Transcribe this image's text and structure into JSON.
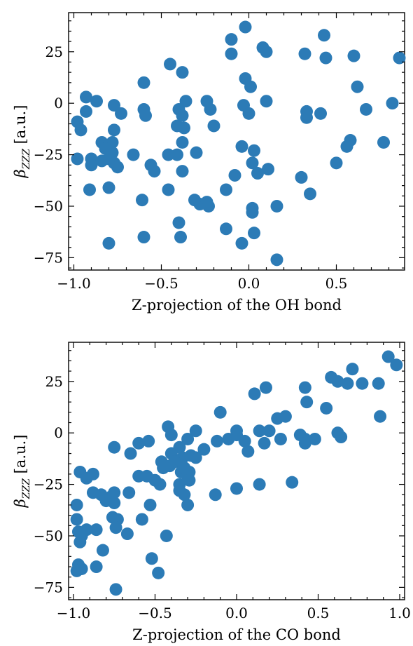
{
  "chart_data": [
    {
      "type": "scatter",
      "xlabel": "Z-projection of the OH bond",
      "ylabel_main": "β",
      "ylabel_sub": "ZZZ",
      "ylabel_unit": " [a.u.]",
      "xlim": [
        -1.03,
        0.89
      ],
      "ylim": [
        -81,
        44
      ],
      "xticks": [
        -1.0,
        -0.5,
        0.0,
        0.5
      ],
      "xtick_labels": [
        "−1.0",
        "−0.5",
        "0.0",
        "0.5"
      ],
      "yticks": [
        25,
        0,
        -25,
        -50,
        -75
      ],
      "ytick_labels": [
        "25",
        "0",
        "−25",
        "−50",
        "−75"
      ],
      "color": "#2c7bb6",
      "points": [
        [
          -0.02,
          37
        ],
        [
          -0.1,
          31
        ],
        [
          -0.1,
          24
        ],
        [
          -0.45,
          19
        ],
        [
          -0.38,
          15
        ],
        [
          -0.02,
          12
        ],
        [
          0.08,
          27
        ],
        [
          0.1,
          25
        ],
        [
          0.32,
          24
        ],
        [
          0.43,
          33
        ],
        [
          0.44,
          22
        ],
        [
          0.6,
          23
        ],
        [
          0.86,
          22
        ],
        [
          -0.6,
          10
        ],
        [
          0.01,
          8
        ],
        [
          0.62,
          8
        ],
        [
          -0.93,
          3
        ],
        [
          -0.87,
          1
        ],
        [
          -0.36,
          1
        ],
        [
          -0.24,
          1
        ],
        [
          0.1,
          1
        ],
        [
          0.82,
          0
        ],
        [
          -0.77,
          -1
        ],
        [
          -0.6,
          -3
        ],
        [
          -0.4,
          -3
        ],
        [
          -0.03,
          -1
        ],
        [
          0.33,
          -4
        ],
        [
          0.41,
          -5
        ],
        [
          0.67,
          -3
        ],
        [
          -0.93,
          -4
        ],
        [
          -0.73,
          -5
        ],
        [
          -0.59,
          -6
        ],
        [
          -0.38,
          -6
        ],
        [
          -0.22,
          -3
        ],
        [
          0.0,
          -5
        ],
        [
          0.33,
          -7
        ],
        [
          -0.98,
          -9
        ],
        [
          -0.41,
          -11
        ],
        [
          -0.2,
          -11
        ],
        [
          -0.96,
          -13
        ],
        [
          -0.37,
          -12
        ],
        [
          -0.77,
          -13
        ],
        [
          -0.38,
          -19
        ],
        [
          -0.84,
          -19
        ],
        [
          -0.78,
          -19
        ],
        [
          0.58,
          -18
        ],
        [
          0.77,
          -19
        ],
        [
          -0.82,
          -22
        ],
        [
          -0.04,
          -21
        ],
        [
          -0.78,
          -24
        ],
        [
          -0.46,
          -25
        ],
        [
          -0.3,
          -24
        ],
        [
          0.03,
          -23
        ],
        [
          0.56,
          -21
        ],
        [
          -0.98,
          -27
        ],
        [
          -0.9,
          -27
        ],
        [
          -0.8,
          -27
        ],
        [
          -0.66,
          -25
        ],
        [
          -0.41,
          -25
        ],
        [
          -0.9,
          -30
        ],
        [
          -0.84,
          -28
        ],
        [
          -0.77,
          -29
        ],
        [
          -0.75,
          -31
        ],
        [
          -0.56,
          -30
        ],
        [
          0.02,
          -29
        ],
        [
          0.5,
          -29
        ],
        [
          -0.54,
          -33
        ],
        [
          -0.38,
          -33
        ],
        [
          -0.08,
          -35
        ],
        [
          0.05,
          -34
        ],
        [
          0.11,
          -32
        ],
        [
          0.3,
          -36
        ],
        [
          -0.91,
          -42
        ],
        [
          -0.8,
          -41
        ],
        [
          -0.46,
          -42
        ],
        [
          -0.13,
          -42
        ],
        [
          0.35,
          -44
        ],
        [
          -0.31,
          -47
        ],
        [
          -0.28,
          -49
        ],
        [
          -0.24,
          -48
        ],
        [
          -0.23,
          -50
        ],
        [
          -0.61,
          -47
        ],
        [
          0.02,
          -51
        ],
        [
          0.02,
          -53
        ],
        [
          0.16,
          -50
        ],
        [
          -0.4,
          -58
        ],
        [
          -0.13,
          -61
        ],
        [
          -0.6,
          -65
        ],
        [
          -0.39,
          -65
        ],
        [
          0.03,
          -63
        ],
        [
          -0.04,
          -68
        ],
        [
          -0.8,
          -68
        ],
        [
          0.16,
          -76
        ]
      ]
    },
    {
      "type": "scatter",
      "xlabel": "Z-projection of the CO bond",
      "ylabel_main": "β",
      "ylabel_sub": "ZZZ",
      "ylabel_unit": " [a.u.]",
      "xlim": [
        -1.03,
        1.03
      ],
      "ylim": [
        -81,
        44
      ],
      "xticks": [
        -1.0,
        -0.5,
        0.0,
        0.5,
        1.0
      ],
      "xtick_labels": [
        "−1.0",
        "−0.5",
        "0.0",
        "0.5",
        "1.0"
      ],
      "yticks": [
        25,
        0,
        -25,
        -50,
        -75
      ],
      "ytick_labels": [
        "25",
        "0",
        "−25",
        "−50",
        "−75"
      ],
      "color": "#2c7bb6",
      "points": [
        [
          0.93,
          37
        ],
        [
          0.98,
          33
        ],
        [
          0.71,
          31
        ],
        [
          0.58,
          27
        ],
        [
          0.62,
          25
        ],
        [
          0.68,
          24
        ],
        [
          0.77,
          24
        ],
        [
          0.87,
          24
        ],
        [
          0.42,
          22
        ],
        [
          0.18,
          22
        ],
        [
          0.11,
          19
        ],
        [
          0.43,
          15
        ],
        [
          0.55,
          12
        ],
        [
          -0.1,
          10
        ],
        [
          0.88,
          8
        ],
        [
          0.3,
          8
        ],
        [
          0.25,
          7
        ],
        [
          -0.42,
          3
        ],
        [
          -0.25,
          1
        ],
        [
          0.0,
          1
        ],
        [
          0.14,
          1
        ],
        [
          0.2,
          1
        ],
        [
          0.62,
          0
        ],
        [
          -0.4,
          -1
        ],
        [
          -0.3,
          -3
        ],
        [
          0.0,
          -1
        ],
        [
          0.39,
          -1
        ],
        [
          0.64,
          -2
        ],
        [
          -0.05,
          -3
        ],
        [
          0.05,
          -4
        ],
        [
          0.27,
          -3
        ],
        [
          0.42,
          -3
        ],
        [
          0.48,
          -3
        ],
        [
          0.17,
          -5
        ],
        [
          -0.12,
          -4
        ],
        [
          -0.6,
          -5
        ],
        [
          -0.75,
          -7
        ],
        [
          -0.54,
          -4
        ],
        [
          0.42,
          -5
        ],
        [
          -0.35,
          -7
        ],
        [
          -0.65,
          -10
        ],
        [
          -0.4,
          -10
        ],
        [
          -0.2,
          -8
        ],
        [
          0.07,
          -9
        ],
        [
          -0.33,
          -12
        ],
        [
          -0.28,
          -11
        ],
        [
          -0.25,
          -12
        ],
        [
          -0.46,
          -14
        ],
        [
          -0.38,
          -14
        ],
        [
          -0.41,
          -16
        ],
        [
          -0.45,
          -17
        ],
        [
          -0.34,
          -19
        ],
        [
          -0.32,
          -17
        ],
        [
          -0.29,
          -19
        ],
        [
          -0.96,
          -19
        ],
        [
          -0.88,
          -20
        ],
        [
          -0.92,
          -22
        ],
        [
          -0.6,
          -21
        ],
        [
          -0.55,
          -21
        ],
        [
          -0.3,
          -21
        ],
        [
          -0.47,
          -25
        ],
        [
          -0.5,
          -23
        ],
        [
          -0.35,
          -25
        ],
        [
          0.0,
          -27
        ],
        [
          0.14,
          -25
        ],
        [
          0.34,
          -24
        ],
        [
          -0.98,
          -35
        ],
        [
          -0.88,
          -29
        ],
        [
          -0.83,
          -30
        ],
        [
          -0.77,
          -31
        ],
        [
          -0.75,
          -29
        ],
        [
          -0.66,
          -29
        ],
        [
          -0.35,
          -28
        ],
        [
          -0.29,
          -23
        ],
        [
          -0.32,
          -30
        ],
        [
          -0.3,
          -35
        ],
        [
          -0.13,
          -30
        ],
        [
          -0.8,
          -33
        ],
        [
          -0.75,
          -34
        ],
        [
          -0.53,
          -35
        ],
        [
          -0.98,
          -42
        ],
        [
          -0.76,
          -41
        ],
        [
          -0.73,
          -42
        ],
        [
          -0.58,
          -42
        ],
        [
          -0.97,
          -48
        ],
        [
          -0.92,
          -47
        ],
        [
          -0.86,
          -47
        ],
        [
          -0.74,
          -46
        ],
        [
          -0.67,
          -49
        ],
        [
          -0.43,
          -50
        ],
        [
          -0.95,
          -50
        ],
        [
          -0.96,
          -53
        ],
        [
          -0.82,
          -57
        ],
        [
          -0.52,
          -61
        ],
        [
          -0.97,
          -64
        ],
        [
          -0.95,
          -66
        ],
        [
          -0.98,
          -67
        ],
        [
          -0.86,
          -65
        ],
        [
          -0.48,
          -68
        ],
        [
          -0.74,
          -76
        ]
      ]
    }
  ]
}
